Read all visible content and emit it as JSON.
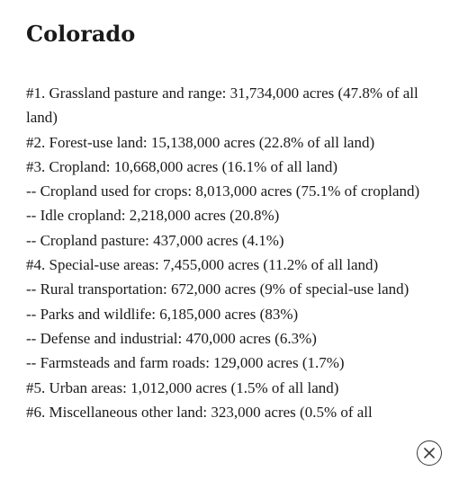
{
  "title": "Colorado",
  "items": [
    "#1. Grassland pasture and range: 31,734,000 acres (47.8% of all land)",
    "#2. Forest-use land: 15,138,000 acres (22.8% of all land)",
    "#3. Cropland: 10,668,000 acres (16.1% of all land)",
    "-- Cropland used for crops: 8,013,000 acres (75.1% of cropland)",
    "-- Idle cropland: 2,218,000 acres (20.8%)",
    "-- Cropland pasture: 437,000 acres (4.1%)",
    "#4. Special-use areas: 7,455,000 acres (11.2% of all land)",
    "-- Rural transportation: 672,000 acres (9% of special-use land)",
    "-- Parks and wildlife: 6,185,000 acres (83%)",
    "-- Defense and industrial: 470,000 acres (6.3%)",
    "-- Farmsteads and farm roads: 129,000 acres (1.7%)",
    "#5. Urban areas: 1,012,000 acres (1.5% of all land)",
    "#6. Miscellaneous other land: 323,000 acres (0.5% of all"
  ],
  "close_icon": "close-circle-icon"
}
